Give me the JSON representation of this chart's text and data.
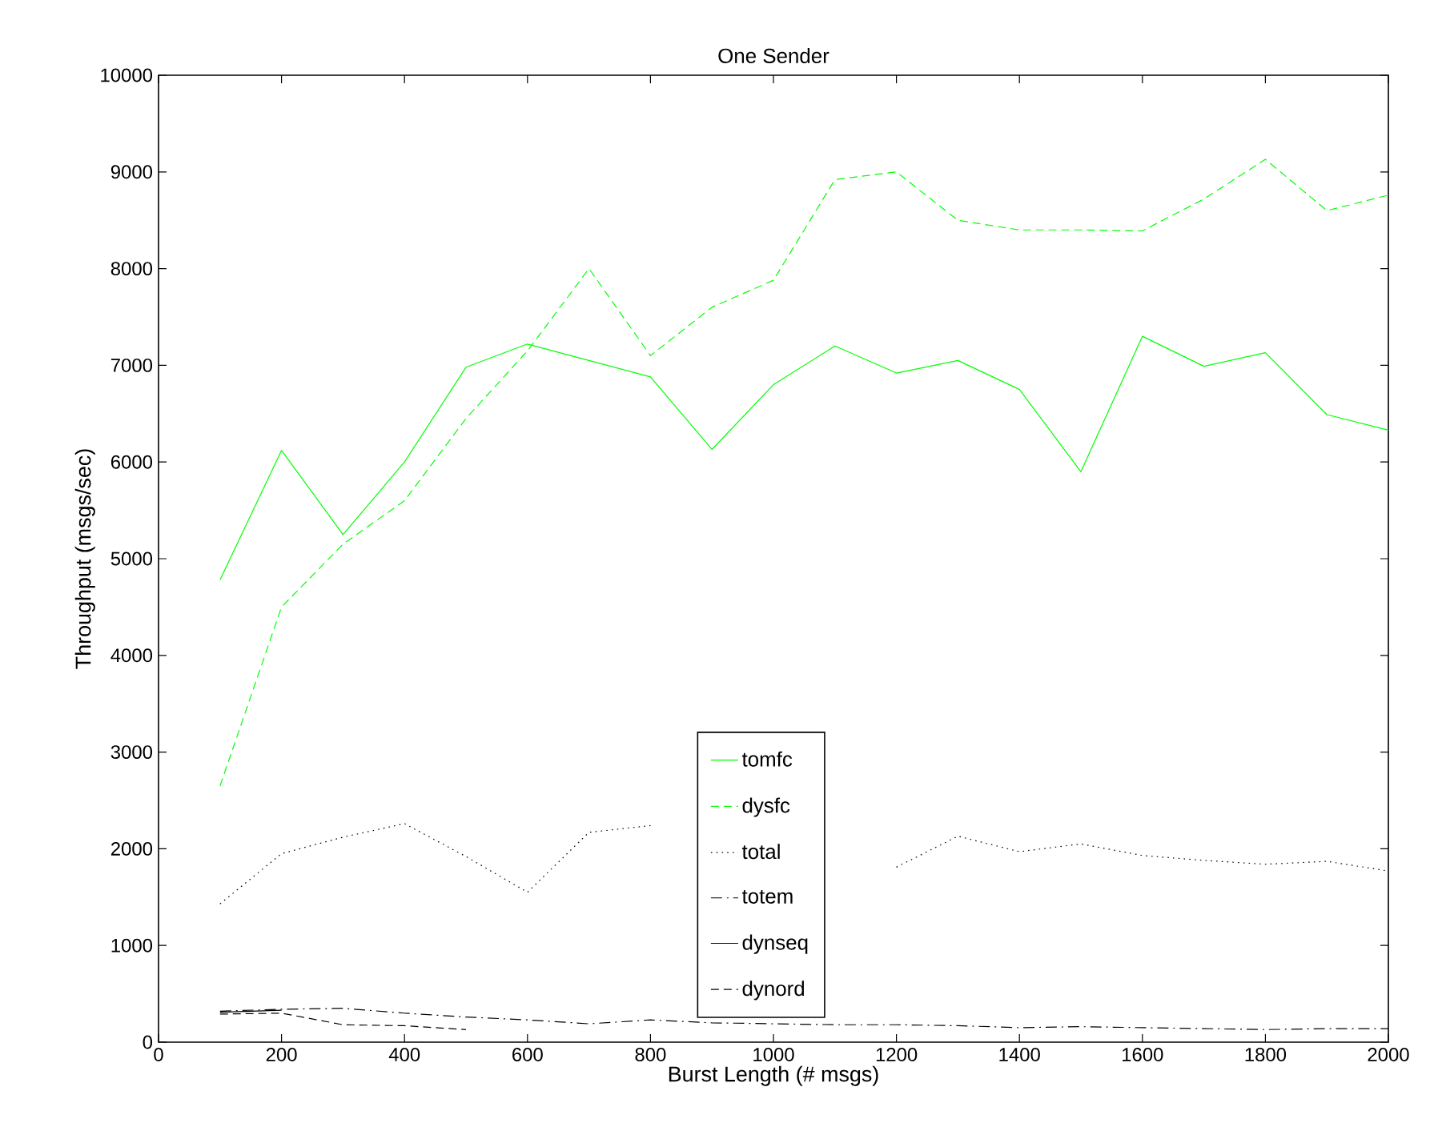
{
  "chart_data": {
    "type": "line",
    "title": "One Sender",
    "xlabel": "Burst Length (# msgs)",
    "ylabel": "Throughput (msgs/sec)",
    "x": [
      100,
      200,
      300,
      400,
      500,
      600,
      700,
      800,
      900,
      1000,
      1100,
      1200,
      1300,
      1400,
      1500,
      1600,
      1700,
      1800,
      1900,
      2000
    ],
    "xlim": [
      0,
      2000
    ],
    "xticks": [
      0,
      200,
      400,
      600,
      800,
      1000,
      1200,
      1400,
      1600,
      1800,
      2000
    ],
    "ylim": [
      0,
      10000
    ],
    "yticks": [
      0,
      1000,
      2000,
      3000,
      4000,
      5000,
      6000,
      7000,
      8000,
      9000,
      10000
    ],
    "grid": false,
    "legend": "bottom",
    "marker": "none",
    "series": [
      {
        "name": "tomfc",
        "color": "#00ff00",
        "line_style": "solid",
        "values": [
          4780,
          6120,
          5250,
          6000,
          6980,
          7220,
          7050,
          6880,
          6130,
          6800,
          7200,
          6920,
          7050,
          6750,
          5900,
          7300,
          6990,
          7130,
          6490,
          6330
        ]
      },
      {
        "name": "dysfc",
        "color": "#00ff00",
        "line_style": "dashed",
        "values": [
          2650,
          4500,
          5150,
          5600,
          6450,
          7150,
          8000,
          7100,
          7600,
          7880,
          8920,
          9000,
          8500,
          8400,
          8400,
          8390,
          8720,
          9130,
          8600,
          8760
        ]
      },
      {
        "name": "total",
        "color": "#000000",
        "line_style": "dotted",
        "values": [
          1430,
          1950,
          2120,
          2260,
          1920,
          1550,
          2170,
          2240,
          null,
          null,
          null,
          1810,
          2130,
          1970,
          2050,
          1930,
          1880,
          1840,
          1870,
          1770
        ]
      },
      {
        "name": "totem",
        "color": "#000000",
        "line_style": "dashdot",
        "values": [
          320,
          340,
          350,
          300,
          260,
          230,
          190,
          230,
          200,
          190,
          180,
          180,
          170,
          150,
          160,
          150,
          140,
          130,
          140,
          140
        ]
      },
      {
        "name": "dynseq",
        "color": "#000000",
        "line_style": "solid",
        "values": [
          310,
          330,
          null,
          null,
          null,
          null,
          null,
          null,
          null,
          null,
          null,
          null,
          null,
          null,
          null,
          null,
          null,
          null,
          null,
          null
        ]
      },
      {
        "name": "dynord",
        "color": "#000000",
        "line_style": "dashed",
        "values": [
          290,
          300,
          180,
          170,
          130,
          null,
          null,
          null,
          null,
          null,
          null,
          null,
          null,
          null,
          null,
          null,
          null,
          null,
          null,
          null
        ]
      }
    ]
  }
}
